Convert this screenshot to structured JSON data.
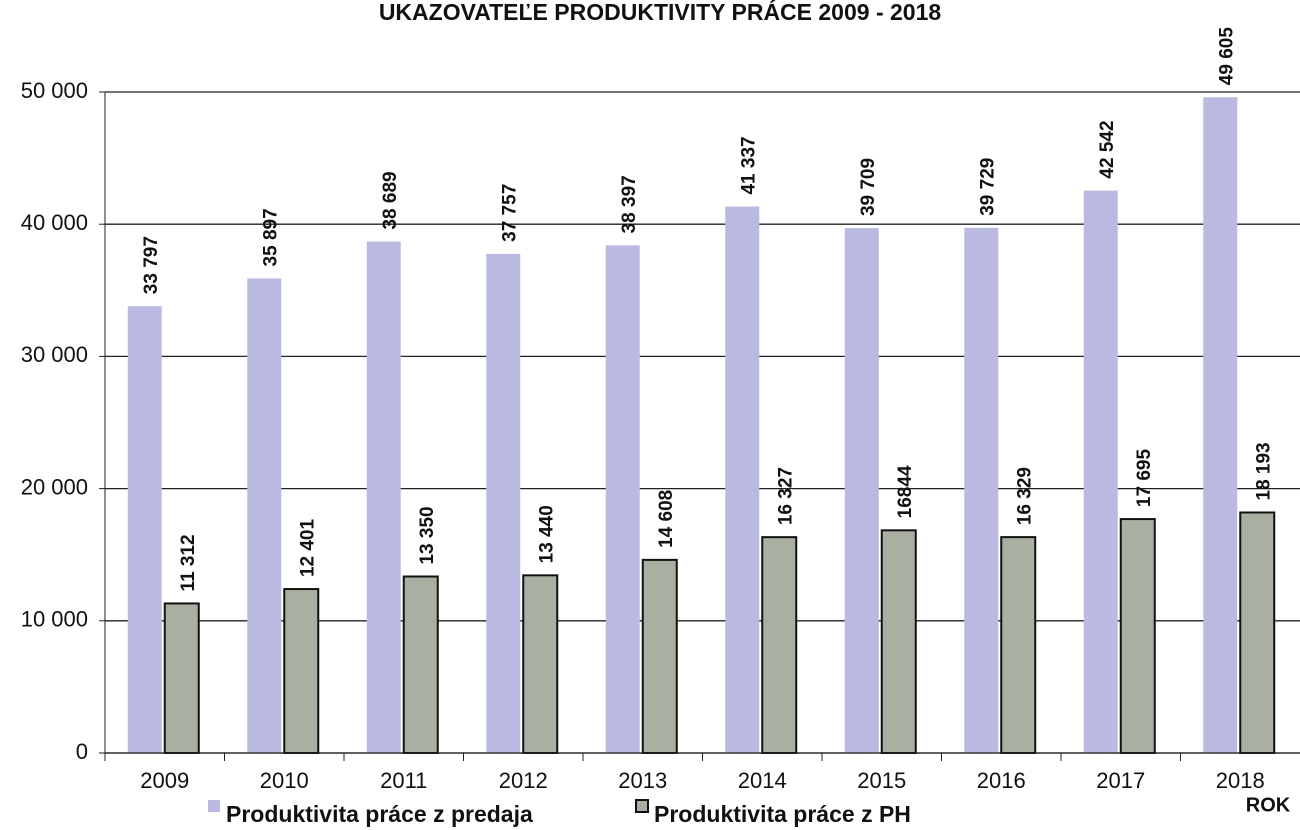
{
  "chart_data": {
    "type": "bar",
    "title": "UKAZOVATEĽE PRODUKTIVITY PRÁCE 2009 - 2018",
    "x_label": "ROK",
    "categories": [
      "2009",
      "2010",
      "2011",
      "2012",
      "2013",
      "2014",
      "2015",
      "2016",
      "2017",
      "2018"
    ],
    "series": [
      {
        "name": "Produktivita práce z predaja",
        "color": "#b9b9e2",
        "values": [
          33797,
          35897,
          38689,
          37757,
          38397,
          41337,
          39709,
          39729,
          42542,
          49605
        ],
        "value_labels": [
          "33 797",
          "35 897",
          "38 689",
          "37 757",
          "38 397",
          "41 337",
          "39 709",
          "39 729",
          "42 542",
          "49 605"
        ]
      },
      {
        "name": "Produktivita práce z PH",
        "color": "#a9b0a2",
        "values": [
          11312,
          12401,
          13350,
          13440,
          14608,
          16327,
          16844,
          16329,
          17695,
          18193
        ],
        "value_labels": [
          "11 312",
          "12 401",
          "13 350",
          "13 440",
          "14 608",
          "16 327",
          "16844",
          "16 329",
          "17 695",
          "18 193"
        ]
      }
    ],
    "ylim": [
      0,
      50000
    ],
    "yticks": [
      0,
      {
        "value": 10000,
        "label": "10 000"
      },
      {
        "value": 20000,
        "label": "20 000"
      },
      {
        "value": 30000,
        "label": "30 000"
      },
      {
        "value": 40000,
        "label": "40 000"
      },
      {
        "value": 50000,
        "label": "50 000"
      }
    ],
    "grid": true
  }
}
